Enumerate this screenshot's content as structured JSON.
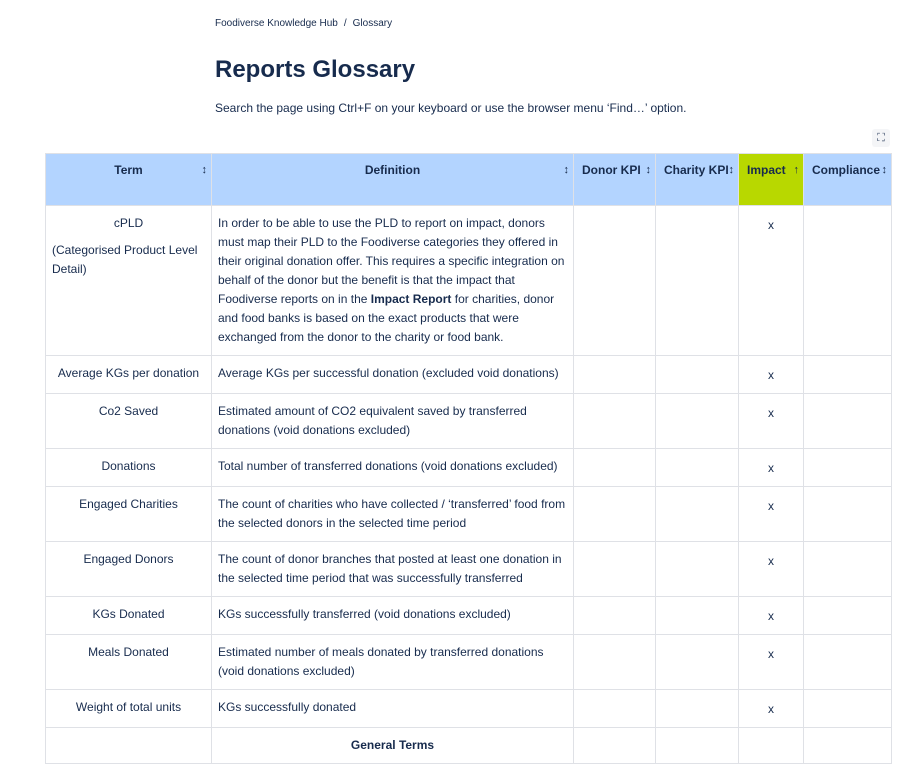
{
  "breadcrumb": [
    "Foodiverse Knowledge Hub",
    "Glossary"
  ],
  "title": "Reports Glossary",
  "subtitle": "Search the page using Ctrl+F on your keyboard or use the browser menu ‘Find…’ option.",
  "columns": [
    {
      "label": "Term",
      "sort": "↕"
    },
    {
      "label": "Definition",
      "sort": "↕"
    },
    {
      "label": "Donor KPI",
      "sort": "↕"
    },
    {
      "label": "Charity KPI",
      "sort": "↕"
    },
    {
      "label": "Impact",
      "sort": "↑"
    },
    {
      "label": "Compliance",
      "sort": "↕"
    }
  ],
  "rows": [
    {
      "term": "cPLD",
      "term_note": "(Categorised Product Level Detail)",
      "def_before": "In order to be able to use the PLD to report on impact, donors must map their PLD to the Foodiverse categories they offered in their original donation offer. This requires a specific integration on behalf of the donor but the benefit is that the impact that Foodiverse reports on in the ",
      "def_bold": "Impact Report",
      "def_after": " for charities, donor and food banks is based on the exact products that were exchanged from the donor to the charity or food bank.",
      "impact": "x"
    },
    {
      "term": "Average KGs per donation",
      "def": "Average KGs per successful donation (excluded void donations)",
      "impact": "x"
    },
    {
      "term": "Co2 Saved",
      "def": "Estimated amount of CO2 equivalent saved by transferred donations (void donations excluded)",
      "impact": "x"
    },
    {
      "term": "Donations",
      "def": "Total number of transferred donations (void donations excluded)",
      "impact": "x"
    },
    {
      "term": "Engaged Charities",
      "def": "The count of charities who have collected / ‘transferred’ food from the selected donors in the selected time period",
      "impact": "x"
    },
    {
      "term": "Engaged Donors",
      "def": "The count of donor branches that posted at least one donation in the selected time period that was successfully transferred",
      "impact": "x"
    },
    {
      "term": "KGs Donated",
      "def": "KGs successfully transferred (void donations excluded)",
      "impact": "x"
    },
    {
      "term": "Meals Donated",
      "def": "Estimated number of meals donated by transferred donations (void donations excluded)",
      "impact": "x"
    },
    {
      "term": "Weight of total units",
      "def": "KGs successfully donated",
      "impact": "x"
    }
  ],
  "section": "General Terms",
  "colors": {
    "header_bg": "#b3d4ff",
    "highlight": "#d6f000"
  }
}
